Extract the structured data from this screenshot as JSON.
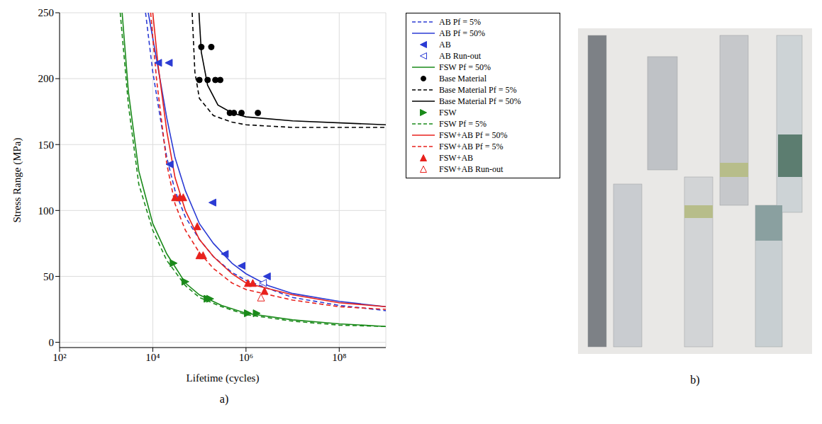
{
  "chart_data": {
    "type": "line",
    "label": "a)",
    "x_label": "Lifetime (cycles)",
    "y_label": "Stress Range (MPa)",
    "log": "x",
    "grid": true,
    "legend": "right",
    "xlim": [
      100,
      1000000000
    ],
    "xticks": [
      {
        "value": 100,
        "label": "10²"
      },
      {
        "value": 10000,
        "label": "10⁴"
      },
      {
        "value": 1000000,
        "label": "10⁶"
      },
      {
        "value": 100000000,
        "label": "10⁸"
      }
    ],
    "ylim": [
      -4,
      250
    ],
    "yticks": [
      0,
      50,
      100,
      150,
      200,
      250
    ],
    "series": [
      {
        "name": "AB Pf = 5%",
        "type": "line",
        "color": "#2b3bd4",
        "line_style": "dashed",
        "x": [
          7000,
          10000,
          20000,
          30000,
          50000,
          100000,
          200000,
          500000,
          1000000,
          10000000,
          100000000,
          1000000000
        ],
        "values": [
          250,
          205,
          140,
          115,
          95,
          78,
          65,
          53,
          47,
          34,
          28,
          24
        ]
      },
      {
        "name": "AB Pf = 50%",
        "type": "line",
        "color": "#2b3bd4",
        "line_style": "solid",
        "x": [
          8000,
          12000,
          20000,
          30000,
          50000,
          100000,
          200000,
          500000,
          1000000,
          3000000,
          10000000,
          100000000,
          1000000000
        ],
        "values": [
          250,
          215,
          170,
          140,
          115,
          90,
          75,
          60,
          52,
          43,
          37,
          31,
          27
        ]
      },
      {
        "name": "AB",
        "type": "scatter",
        "color": "#2b3bd4",
        "marker": "triangle-left",
        "x": [
          13000,
          22000,
          23000,
          190000,
          350000,
          800000,
          2800000
        ],
        "values": [
          212,
          212,
          135,
          106,
          67,
          58,
          50
        ]
      },
      {
        "name": "AB Run-out",
        "type": "scatter",
        "color": "#2b3bd4",
        "marker": "triangle-left-open",
        "x": [
          2300000
        ],
        "values": [
          45
        ]
      },
      {
        "name": "FSW Pf = 50%",
        "type": "line",
        "color": "#1a8a1a",
        "line_style": "solid",
        "x": [
          2200,
          3000,
          5000,
          10000,
          20000,
          50000,
          100000,
          300000,
          1000000,
          10000000,
          100000000,
          1000000000
        ],
        "values": [
          250,
          190,
          130,
          90,
          67,
          45,
          36,
          28,
          22,
          17,
          14,
          12
        ]
      },
      {
        "name": "Base Material",
        "type": "scatter",
        "color": "#000000",
        "marker": "circle",
        "x": [
          100000,
          110000,
          180000,
          150000,
          220000,
          280000,
          450000,
          550000,
          800000,
          1800000
        ],
        "values": [
          199,
          224,
          224,
          199,
          199,
          199,
          174,
          174,
          174,
          174
        ]
      },
      {
        "name": "Base Material Pf = 5%",
        "type": "line",
        "color": "#000000",
        "line_style": "dashed",
        "x": [
          70000,
          80000,
          100000,
          200000,
          500000,
          1000000,
          10000000,
          1000000000
        ],
        "values": [
          250,
          205,
          185,
          172,
          167,
          165,
          163,
          163
        ]
      },
      {
        "name": "Base Material Pf = 50%",
        "type": "line",
        "color": "#000000",
        "line_style": "solid",
        "x": [
          98000,
          110000,
          150000,
          250000,
          500000,
          1000000,
          10000000,
          1000000000
        ],
        "values": [
          250,
          220,
          195,
          180,
          174,
          171,
          168,
          165
        ]
      },
      {
        "name": "FSW",
        "type": "scatter",
        "color": "#1a8a1a",
        "marker": "triangle-right",
        "x": [
          28000,
          50000,
          150000,
          170000,
          1100000,
          1700000
        ],
        "values": [
          60,
          46,
          33,
          33,
          22,
          22
        ]
      },
      {
        "name": "FSW Pf = 5%",
        "type": "line",
        "color": "#1a8a1a",
        "line_style": "dashed",
        "x": [
          2000,
          3000,
          5000,
          10000,
          20000,
          50000,
          100000,
          300000,
          1000000,
          10000000,
          100000000,
          1000000000
        ],
        "values": [
          250,
          180,
          120,
          85,
          62,
          43,
          34,
          27,
          21,
          16,
          13,
          12
        ]
      },
      {
        "name": "FSW+AB Pf = 50%",
        "type": "line",
        "color": "#e8211c",
        "line_style": "solid",
        "x": [
          10000,
          13000,
          20000,
          30000,
          50000,
          100000,
          200000,
          500000,
          1000000,
          10000000,
          100000000,
          1000000000
        ],
        "values": [
          250,
          210,
          160,
          125,
          100,
          78,
          65,
          52,
          45,
          36,
          30,
          27
        ]
      },
      {
        "name": "FSW+AB Pf = 5%",
        "type": "line",
        "color": "#e8211c",
        "line_style": "dashed",
        "x": [
          9000,
          12000,
          20000,
          30000,
          50000,
          100000,
          200000,
          500000,
          1000000,
          10000000,
          100000000,
          1000000000
        ],
        "values": [
          250,
          200,
          135,
          105,
          85,
          68,
          56,
          45,
          40,
          32,
          27,
          25
        ]
      },
      {
        "name": "FSW+AB",
        "type": "scatter",
        "color": "#e8211c",
        "marker": "triangle-up",
        "x": [
          30000,
          38000,
          45000,
          90000,
          100000,
          120000,
          1100000,
          1400000,
          2500000
        ],
        "values": [
          110,
          110,
          110,
          88,
          66,
          66,
          45,
          45,
          39
        ]
      },
      {
        "name": "FSW+AB Run-out",
        "type": "scatter",
        "color": "#e8211c",
        "marker": "triangle-up-open",
        "x": [
          2100000
        ],
        "values": [
          34
        ]
      }
    ]
  },
  "photo": {
    "label": "b)"
  }
}
